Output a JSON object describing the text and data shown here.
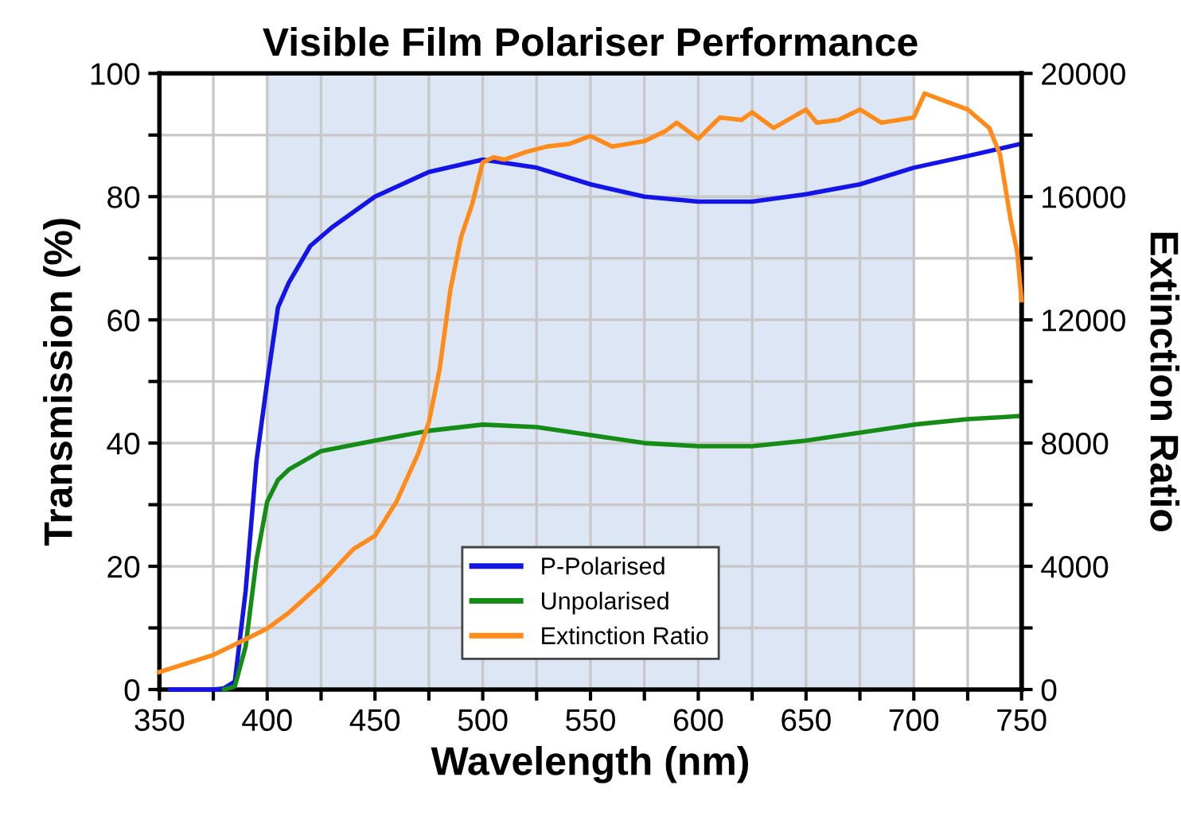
{
  "chart_data": {
    "type": "line",
    "title": "Visible Film Polariser Performance",
    "xlabel": "Wavelength (nm)",
    "ylabel": "Transmission (%)",
    "y2label": "Extinction Ratio",
    "xlim": [
      350,
      750
    ],
    "xticks": [
      350,
      {
        "value": 375,
        "label": null
      },
      400,
      {
        "value": 425,
        "label": null
      },
      450,
      {
        "value": 475,
        "label": null
      },
      500,
      {
        "value": 525,
        "label": null
      },
      550,
      {
        "value": 575,
        "label": null
      },
      600,
      {
        "value": 625,
        "label": null
      },
      650,
      {
        "value": 675,
        "label": null
      },
      700,
      {
        "value": 725,
        "label": null
      },
      750
    ],
    "ylim": [
      0,
      100
    ],
    "yticks": [
      0,
      {
        "value": 10,
        "label": null
      },
      20,
      {
        "value": 30,
        "label": null
      },
      40,
      {
        "value": 50,
        "label": null
      },
      60,
      {
        "value": 70,
        "label": null
      },
      80,
      {
        "value": 90,
        "label": null
      },
      100
    ],
    "y2lim": [
      0,
      20000
    ],
    "y2ticks": [
      0,
      {
        "value": 2000,
        "label": null
      },
      4000,
      {
        "value": 6000,
        "label": null
      },
      8000,
      {
        "value": 10000,
        "label": null
      },
      12000,
      {
        "value": 14000,
        "label": null
      },
      16000,
      {
        "value": 18000,
        "label": null
      },
      20000
    ],
    "grid": true,
    "legend": "bottom",
    "bands": [
      {
        "axis": "x",
        "from": 400,
        "to": 700,
        "label": null,
        "color": "#dce6f5"
      }
    ],
    "series": [
      {
        "name": "P-Polarised",
        "color": "#1414e6",
        "x": [
          355,
          375,
          380,
          385,
          390,
          395,
          400,
          405,
          410,
          420,
          430,
          450,
          475,
          500,
          510,
          525,
          550,
          575,
          600,
          625,
          650,
          675,
          700,
          725,
          750
        ],
        "values": [
          0,
          0,
          0.2,
          1.3,
          16,
          37,
          50,
          62,
          66,
          72,
          75,
          80,
          84,
          86,
          85.5,
          84.7,
          82,
          80,
          79.2,
          79.2,
          80.4,
          82,
          84.7,
          86.6,
          88.6
        ]
      },
      {
        "name": "Unpolarised",
        "color": "#158c15",
        "x": [
          380,
          385,
          390,
          395,
          400,
          405,
          410,
          425,
          450,
          475,
          500,
          525,
          550,
          575,
          600,
          625,
          650,
          675,
          700,
          725,
          750
        ],
        "values": [
          0,
          0.5,
          7,
          21,
          30.5,
          34,
          35.7,
          38.7,
          40.4,
          42,
          43,
          42.6,
          41.3,
          40,
          39.5,
          39.5,
          40.4,
          41.7,
          43,
          43.9,
          44.4
        ]
      },
      {
        "name": "Extinction Ratio",
        "color": "#ff8c1a",
        "axis": "y2",
        "x": [
          350,
          375,
          390,
          400,
          410,
          425,
          440,
          450,
          460,
          470,
          475,
          480,
          485,
          490,
          495,
          500,
          505,
          510,
          520,
          530,
          540,
          550,
          560,
          575,
          585,
          590,
          600,
          610,
          620,
          625,
          635,
          650,
          655,
          665,
          675,
          685,
          700,
          705,
          715,
          725,
          735,
          740,
          745,
          748,
          750
        ],
        "values": [
          570,
          1120,
          1630,
          1980,
          2490,
          3440,
          4560,
          4990,
          6100,
          7650,
          8680,
          10400,
          12980,
          14700,
          15730,
          17110,
          17280,
          17200,
          17450,
          17630,
          17710,
          17970,
          17630,
          17800,
          18140,
          18400,
          17880,
          18570,
          18490,
          18740,
          18230,
          18830,
          18400,
          18490,
          18830,
          18400,
          18570,
          19350,
          19090,
          18830,
          18230,
          17370,
          15220,
          14190,
          12640
        ]
      }
    ]
  }
}
